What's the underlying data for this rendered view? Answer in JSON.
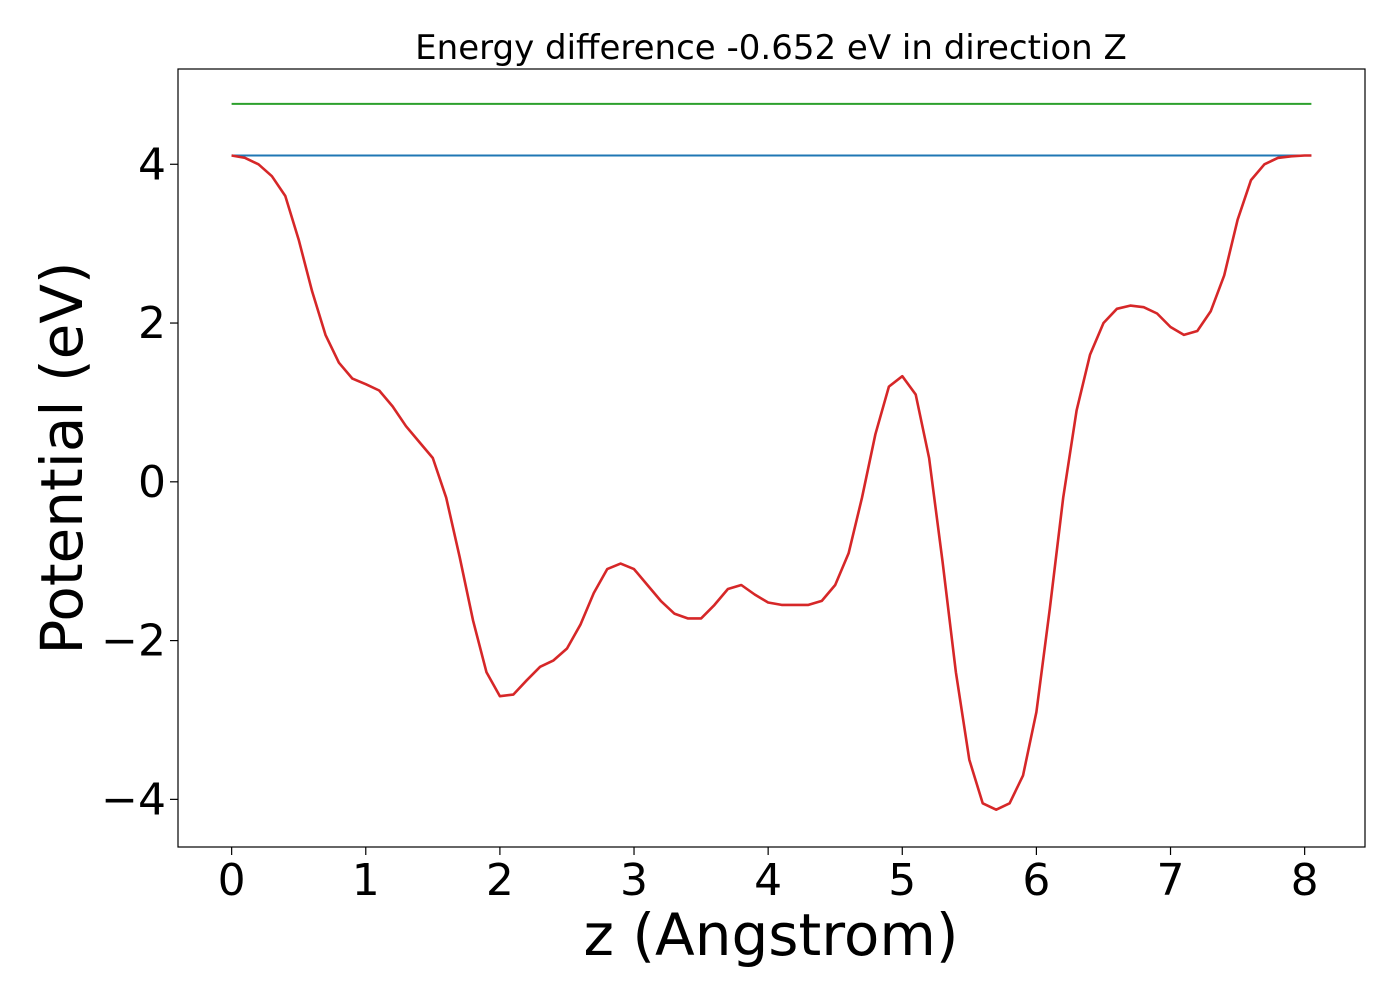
{
  "chart_data": {
    "type": "line",
    "title": "Energy difference -0.652 eV in direction Z",
    "xlabel": "z (Angstrom)",
    "ylabel": "Potential (eV)",
    "xlim": [
      -0.4,
      8.45
    ],
    "ylim": [
      -4.6,
      5.2
    ],
    "xticks": [
      0,
      1,
      2,
      3,
      4,
      5,
      6,
      7,
      8
    ],
    "xtick_labels": [
      "0",
      "1",
      "2",
      "3",
      "4",
      "5",
      "6",
      "7",
      "8"
    ],
    "yticks": [
      -4,
      -2,
      0,
      2,
      4
    ],
    "ytick_labels": [
      "−4",
      "−2",
      "0",
      "2",
      "4"
    ],
    "grid": false,
    "series": [
      {
        "color": "#2ca02c",
        "x": [
          0,
          8.05
        ],
        "y": [
          4.76,
          4.76
        ]
      },
      {
        "color": "#1f77b4",
        "x": [
          0,
          8.05
        ],
        "y": [
          4.11,
          4.11
        ]
      },
      {
        "color": "#d62728",
        "x": [
          0,
          0.1,
          0.2,
          0.3,
          0.4,
          0.5,
          0.6,
          0.7,
          0.8,
          0.9,
          1.0,
          1.1,
          1.2,
          1.3,
          1.4,
          1.5,
          1.6,
          1.7,
          1.8,
          1.9,
          2.0,
          2.1,
          2.2,
          2.3,
          2.4,
          2.5,
          2.6,
          2.7,
          2.8,
          2.9,
          3.0,
          3.1,
          3.2,
          3.3,
          3.4,
          3.5,
          3.6,
          3.7,
          3.8,
          3.9,
          4.0,
          4.1,
          4.2,
          4.3,
          4.4,
          4.5,
          4.6,
          4.7,
          4.8,
          4.9,
          5.0,
          5.1,
          5.2,
          5.3,
          5.4,
          5.5,
          5.6,
          5.7,
          5.8,
          5.9,
          6.0,
          6.1,
          6.2,
          6.3,
          6.4,
          6.5,
          6.6,
          6.7,
          6.8,
          6.9,
          7.0,
          7.1,
          7.2,
          7.3,
          7.4,
          7.5,
          7.6,
          7.7,
          7.8,
          7.9,
          8.0,
          8.05
        ],
        "y": [
          4.11,
          4.08,
          4.0,
          3.85,
          3.6,
          3.05,
          2.4,
          1.85,
          1.5,
          1.3,
          1.23,
          1.15,
          0.95,
          0.7,
          0.5,
          0.3,
          -0.2,
          -0.95,
          -1.75,
          -2.4,
          -2.7,
          -2.68,
          -2.5,
          -2.33,
          -2.25,
          -2.1,
          -1.8,
          -1.4,
          -1.1,
          -1.03,
          -1.1,
          -1.3,
          -1.5,
          -1.66,
          -1.72,
          -1.72,
          -1.55,
          -1.35,
          -1.3,
          -1.42,
          -1.52,
          -1.55,
          -1.55,
          -1.55,
          -1.5,
          -1.3,
          -0.9,
          -0.2,
          0.6,
          1.2,
          1.33,
          1.1,
          0.3,
          -1.0,
          -2.4,
          -3.5,
          -4.05,
          -4.13,
          -4.05,
          -3.7,
          -2.9,
          -1.6,
          -0.2,
          0.9,
          1.6,
          2.0,
          2.18,
          2.22,
          2.2,
          2.12,
          1.95,
          1.85,
          1.9,
          2.15,
          2.6,
          3.3,
          3.8,
          4.0,
          4.08,
          4.1,
          4.11,
          4.11
        ]
      }
    ]
  }
}
